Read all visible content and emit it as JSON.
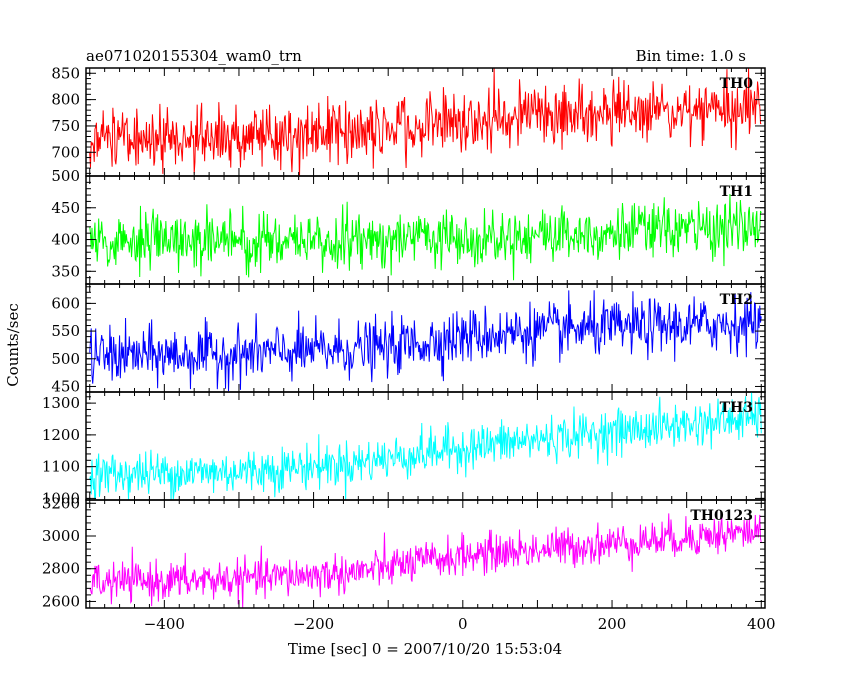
{
  "header": {
    "left": "ae071020155304_wam0_trn",
    "right": "Bin time: 1.0 s"
  },
  "chart_data": {
    "type": "line",
    "xlabel": "Time [sec] 0 = 2007/10/20 15:53:04",
    "ylabel": "Counts/sec",
    "xlim": [
      -505,
      405
    ],
    "x_ticks": [
      -400,
      -200,
      0,
      200,
      400
    ],
    "x_tick_labels": [
      "−400",
      "−200",
      "0",
      "200",
      "400"
    ],
    "bin_time_s": 1.0,
    "grid": false,
    "panels": [
      {
        "name": "TH0",
        "color": "#ff0000",
        "ylim": [
          655,
          860
        ],
        "y_ticks": [
          700,
          750,
          800,
          850
        ],
        "y_tick_labels": [
          "700",
          "750",
          "800",
          "850"
        ],
        "trend": [
          [
            -500,
            727
          ],
          [
            -300,
            728
          ],
          [
            -150,
            738
          ],
          [
            0,
            762
          ],
          [
            200,
            775
          ],
          [
            400,
            787
          ]
        ],
        "noise_sigma": 30,
        "x_range": [
          -500,
          400
        ]
      },
      {
        "name": "TH1",
        "color": "#00ff00",
        "ylim": [
          330,
          500
        ],
        "y_ticks": [
          350,
          400,
          450,
          500
        ],
        "y_tick_labels": [
          "350",
          "400",
          "450",
          "500"
        ],
        "trend": [
          [
            -500,
            397
          ],
          [
            -200,
            398
          ],
          [
            0,
            405
          ],
          [
            200,
            412
          ],
          [
            400,
            420
          ]
        ],
        "noise_sigma": 22,
        "x_range": [
          -500,
          400
        ]
      },
      {
        "name": "TH2",
        "color": "#0000ff",
        "ylim": [
          440,
          635
        ],
        "y_ticks": [
          450,
          500,
          550,
          600
        ],
        "y_tick_labels": [
          "450",
          "500",
          "550",
          "600"
        ],
        "trend": [
          [
            -500,
            505
          ],
          [
            -300,
            508
          ],
          [
            -100,
            520
          ],
          [
            0,
            540
          ],
          [
            100,
            550
          ],
          [
            200,
            555
          ],
          [
            400,
            565
          ]
        ],
        "noise_sigma": 25,
        "x_range": [
          -500,
          400
        ]
      },
      {
        "name": "TH3",
        "color": "#00ffff",
        "ylim": [
          995,
          1335
        ],
        "y_ticks": [
          1000,
          1100,
          1200,
          1300
        ],
        "y_tick_labels": [
          "1000",
          "1100",
          "1200",
          "1300"
        ],
        "trend": [
          [
            -500,
            1075
          ],
          [
            -300,
            1085
          ],
          [
            -150,
            1110
          ],
          [
            0,
            1160
          ],
          [
            200,
            1210
          ],
          [
            400,
            1255
          ]
        ],
        "noise_sigma": 35,
        "x_range": [
          -500,
          400
        ]
      },
      {
        "name": "TH0123",
        "color": "#ff00ff",
        "ylim": [
          2560,
          3220
        ],
        "y_ticks": [
          2600,
          2800,
          3000,
          3200
        ],
        "y_tick_labels": [
          "2600",
          "2800",
          "3000",
          "3200"
        ],
        "trend": [
          [
            -500,
            2715
          ],
          [
            -300,
            2735
          ],
          [
            -150,
            2775
          ],
          [
            0,
            2880
          ],
          [
            200,
            2955
          ],
          [
            400,
            3030
          ]
        ],
        "noise_sigma": 60,
        "x_range": [
          -500,
          400
        ]
      }
    ]
  }
}
